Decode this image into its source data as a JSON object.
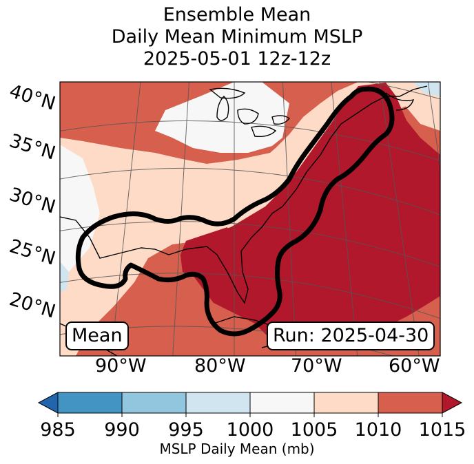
{
  "title": {
    "line1": "Ensemble Mean",
    "line2": "Daily Mean Minimum MSLP",
    "line3": "2025-05-01 12z-12z"
  },
  "map": {
    "projection": "Lambert conformal",
    "lat_labels": [
      "40°N",
      "35°N",
      "30°N",
      "25°N",
      "20°N"
    ],
    "lon_labels": [
      "90°W",
      "80°W",
      "70°W",
      "60°W"
    ],
    "mean_label": "Mean",
    "run_label": "Run: 2025-04-30",
    "contour": "thick black outline of ensemble mean low track"
  },
  "colorbar": {
    "ticks": [
      "985",
      "990",
      "995",
      "1000",
      "1005",
      "1010",
      "1015"
    ],
    "colors": [
      "#2166ac",
      "#4393c3",
      "#92c5de",
      "#d1e5f0",
      "#f7f7f7",
      "#fddbc7",
      "#d6604d",
      "#b2182b"
    ],
    "label": "MSLP Daily Mean (mb)",
    "extend": "both"
  },
  "chart_data": {
    "type": "heatmap",
    "title": "Ensemble Mean Daily Mean Minimum MSLP 2025-05-01 12z-12z",
    "variable": "MSLP Daily Mean",
    "units": "mb",
    "levels": [
      985,
      990,
      995,
      1000,
      1005,
      1010,
      1015
    ],
    "lat_range": [
      15,
      40
    ],
    "lon_range": [
      -95,
      -58
    ],
    "dominant_values": "1010-1015 mb over western Atlantic and US East Coast; 1005-1010 mb over Gulf of Mexico and inland US"
  }
}
